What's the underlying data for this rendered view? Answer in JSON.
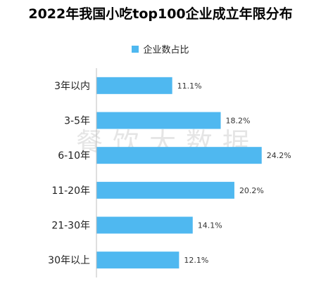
{
  "chart_data": {
    "type": "bar",
    "orientation": "horizontal",
    "title": "2022年我国小吃top100企业成立年限分布",
    "legend": {
      "label": "企业数占比",
      "placement": "top"
    },
    "categories": [
      "3年以内",
      "3-5年",
      "6-10年",
      "11-20年",
      "21-30年",
      "30年以上"
    ],
    "values": [
      11.1,
      18.2,
      24.2,
      20.2,
      14.1,
      12.1
    ],
    "value_labels": [
      "11.1%",
      "18.2%",
      "24.2%",
      "20.2%",
      "14.1%",
      "12.1%"
    ],
    "xlim": [
      0,
      30
    ],
    "grid": false,
    "colors": {
      "bar": "#4fb8f0",
      "axis": "#bfbfbf"
    }
  },
  "watermark": "餐饮大数据"
}
